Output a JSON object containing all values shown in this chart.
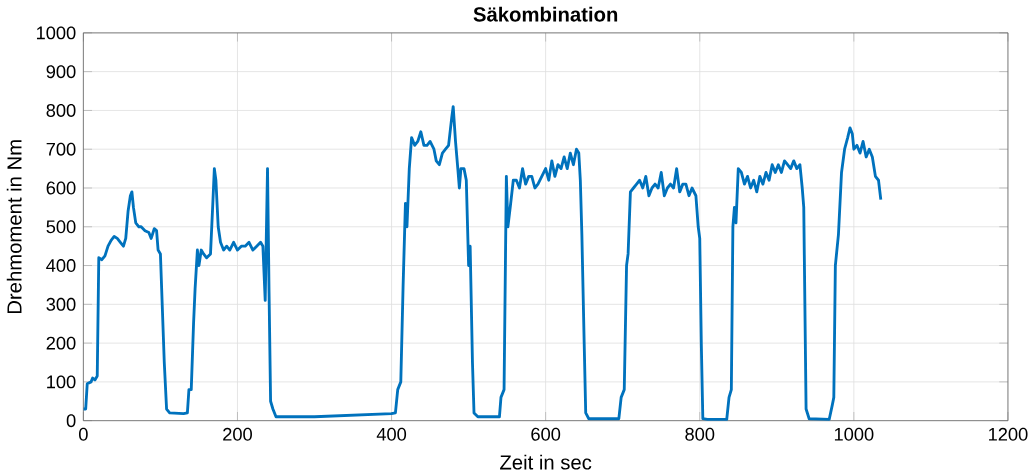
{
  "chart_data": {
    "type": "line",
    "title": "Säkombination",
    "xlabel": "Zeit in sec",
    "ylabel": "Drehmoment in Nm",
    "xlim": [
      0,
      1200
    ],
    "ylim": [
      0,
      1000
    ],
    "xticks": [
      0,
      200,
      400,
      600,
      800,
      1000,
      1200
    ],
    "yticks": [
      0,
      100,
      200,
      300,
      400,
      500,
      600,
      700,
      800,
      900,
      1000
    ],
    "grid": true,
    "marker": "none",
    "line_style": "solid",
    "series": [
      {
        "color": "#0072bd",
        "x": [
          0,
          3,
          5,
          10,
          12,
          15,
          18,
          20,
          24,
          28,
          32,
          36,
          40,
          44,
          48,
          52,
          55,
          58,
          61,
          63,
          65,
          68,
          72,
          75,
          80,
          85,
          88,
          92,
          95,
          97,
          100,
          105,
          108,
          112,
          130,
          135,
          137,
          140,
          143,
          145,
          148,
          150,
          153,
          156,
          160,
          165,
          168,
          170,
          172,
          175,
          178,
          182,
          186,
          190,
          195,
          200,
          205,
          210,
          215,
          220,
          225,
          230,
          233,
          236,
          239,
          241,
          243,
          246,
          250,
          300,
          400,
          405,
          408,
          412,
          415,
          418,
          420,
          423,
          426,
          430,
          434,
          438,
          442,
          446,
          450,
          455,
          458,
          462,
          466,
          470,
          474,
          478,
          480,
          483,
          486,
          488,
          490,
          494,
          497,
          500,
          502,
          505,
          507,
          512,
          540,
          542,
          546,
          549,
          551,
          554,
          558,
          562,
          566,
          570,
          574,
          578,
          582,
          586,
          590,
          595,
          600,
          604,
          608,
          612,
          616,
          620,
          624,
          628,
          632,
          636,
          640,
          643,
          645,
          647,
          650,
          652,
          656,
          695,
          698,
          702,
          705,
          707,
          710,
          714,
          718,
          722,
          726,
          730,
          734,
          738,
          742,
          746,
          750,
          754,
          758,
          762,
          766,
          770,
          774,
          778,
          782,
          786,
          790,
          795,
          798,
          800,
          802,
          804,
          810,
          835,
          838,
          841,
          843,
          845,
          847,
          850,
          854,
          858,
          862,
          866,
          870,
          874,
          878,
          882,
          886,
          890,
          894,
          898,
          902,
          906,
          910,
          914,
          918,
          922,
          926,
          930,
          933,
          935,
          938,
          942,
          968,
          972,
          974,
          976,
          980,
          984,
          988,
          992,
          995,
          998,
          1000,
          1004,
          1008,
          1012,
          1016,
          1020,
          1024,
          1028,
          1032,
          1035
        ],
        "values": [
          30,
          30,
          95,
          100,
          110,
          105,
          115,
          420,
          415,
          425,
          450,
          465,
          475,
          470,
          460,
          450,
          470,
          540,
          580,
          590,
          550,
          510,
          500,
          500,
          490,
          485,
          470,
          495,
          490,
          440,
          430,
          150,
          30,
          20,
          18,
          20,
          80,
          80,
          250,
          340,
          440,
          400,
          440,
          430,
          420,
          430,
          560,
          650,
          620,
          500,
          460,
          440,
          450,
          440,
          460,
          440,
          450,
          450,
          460,
          440,
          450,
          460,
          450,
          310,
          650,
          330,
          50,
          30,
          10,
          10,
          18,
          20,
          80,
          100,
          350,
          560,
          500,
          650,
          730,
          710,
          720,
          745,
          710,
          710,
          720,
          700,
          670,
          660,
          690,
          700,
          710,
          780,
          810,
          720,
          650,
          600,
          650,
          650,
          620,
          400,
          450,
          150,
          20,
          10,
          10,
          60,
          80,
          630,
          500,
          550,
          620,
          620,
          600,
          650,
          610,
          630,
          630,
          600,
          610,
          630,
          650,
          620,
          670,
          630,
          660,
          650,
          680,
          650,
          690,
          660,
          700,
          690,
          620,
          480,
          200,
          20,
          5,
          5,
          60,
          80,
          400,
          430,
          590,
          600,
          610,
          620,
          600,
          630,
          580,
          600,
          610,
          600,
          640,
          580,
          600,
          610,
          600,
          650,
          590,
          610,
          610,
          580,
          600,
          580,
          500,
          470,
          200,
          5,
          3,
          3,
          60,
          80,
          500,
          550,
          510,
          650,
          640,
          610,
          630,
          600,
          620,
          590,
          630,
          610,
          640,
          620,
          660,
          640,
          660,
          640,
          670,
          660,
          650,
          670,
          650,
          660,
          600,
          550,
          30,
          5,
          3,
          40,
          60,
          400,
          480,
          640,
          700,
          730,
          755,
          740,
          700,
          710,
          690,
          720,
          680,
          700,
          680,
          630,
          620,
          570
        ]
      }
    ]
  }
}
